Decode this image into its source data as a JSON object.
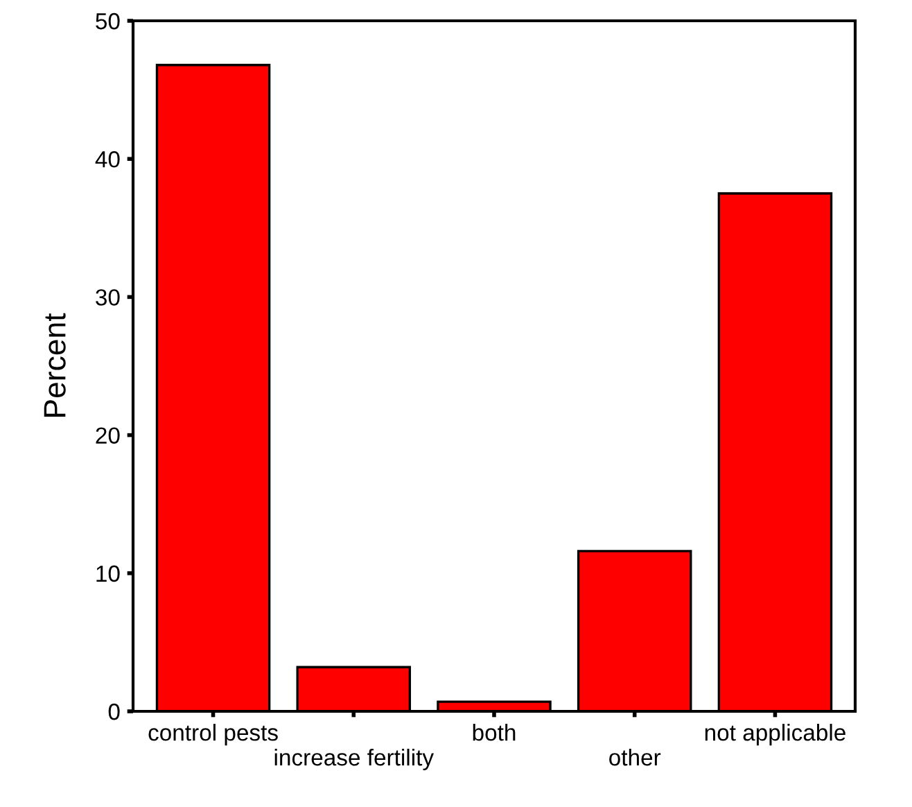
{
  "chart_data": {
    "type": "bar",
    "ylabel": "Percent",
    "categories": [
      "control pests",
      "increase fertility",
      "both",
      "other",
      "not applicable"
    ],
    "values": [
      46.8,
      3.2,
      0.7,
      11.6,
      37.5
    ],
    "color": "#ff0000",
    "ylim": [
      0,
      50
    ],
    "yticks": [
      0,
      10,
      20,
      30,
      40,
      50
    ],
    "grid": false,
    "legend": false
  }
}
